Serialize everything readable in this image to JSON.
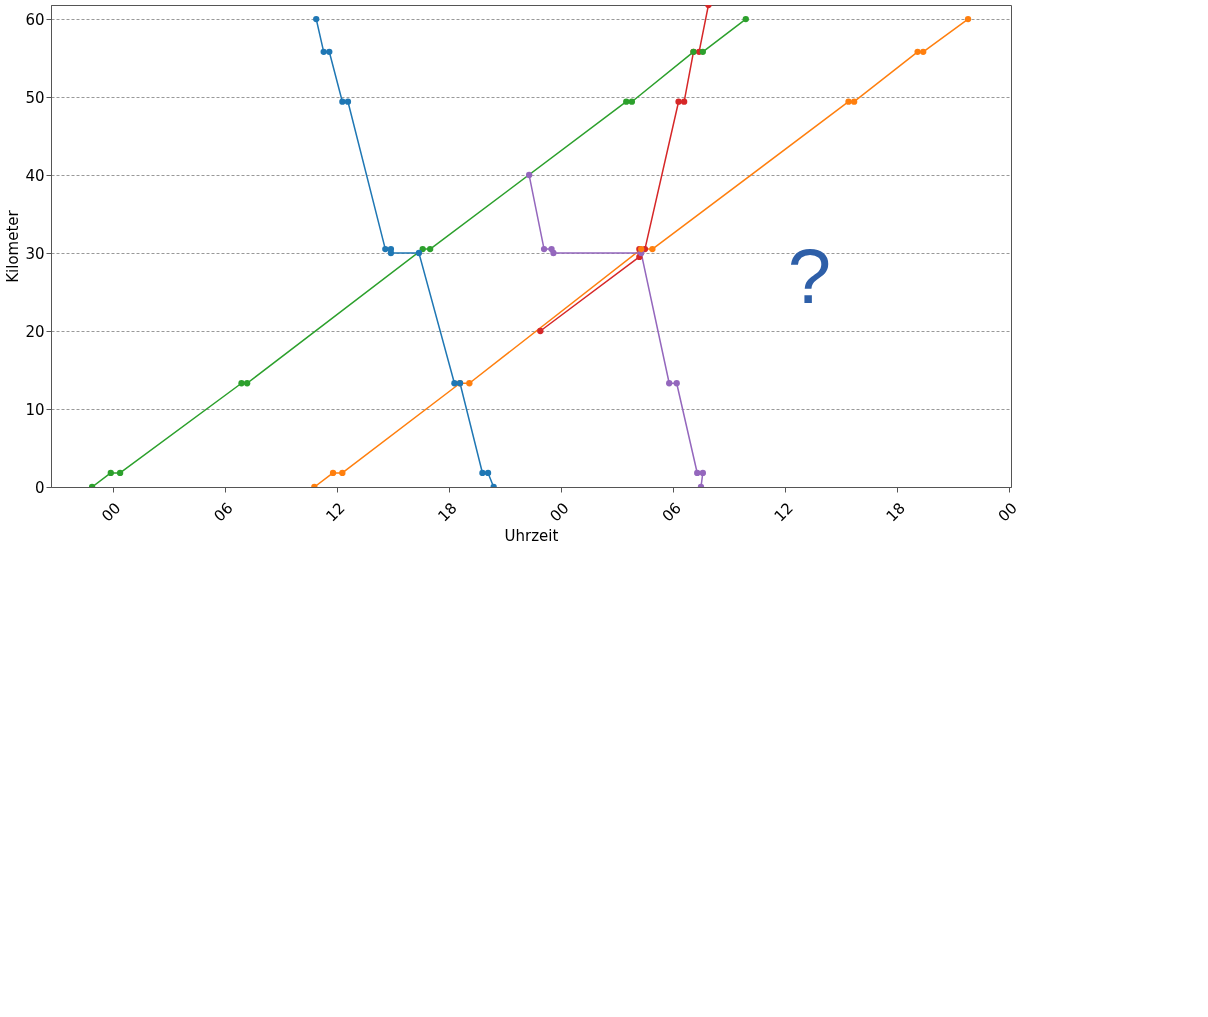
{
  "chart_data": {
    "type": "line",
    "xlabel": "Uhrzeit",
    "ylabel": "Kilometer",
    "xlim": [
      -3.3,
      48.1
    ],
    "ylim": [
      0,
      61.8
    ],
    "xticks": [
      {
        "value": 0,
        "label": "00"
      },
      {
        "value": 6,
        "label": "06"
      },
      {
        "value": 12,
        "label": "12"
      },
      {
        "value": 18,
        "label": "18"
      },
      {
        "value": 24,
        "label": "00"
      },
      {
        "value": 30,
        "label": "06"
      },
      {
        "value": 36,
        "label": "12"
      },
      {
        "value": 42,
        "label": "18"
      },
      {
        "value": 48,
        "label": "00"
      }
    ],
    "yticks": [
      0,
      10,
      20,
      30,
      40,
      50,
      60
    ],
    "grid": "y",
    "legend": false,
    "marker": "circle",
    "line_style": "solid",
    "annotations": [
      "?"
    ],
    "series": [
      {
        "color": "#1f77b4",
        "x": [
          10.9,
          11.3,
          11.6,
          12.3,
          12.6,
          14.6,
          14.9,
          14.9,
          16.4,
          18.3,
          18.6,
          19.8,
          20.1,
          20.4
        ],
        "values": [
          60,
          55.8,
          55.8,
          49.4,
          49.4,
          30.5,
          30.5,
          30,
          30,
          13.3,
          13.3,
          1.8,
          1.8,
          0
        ]
      },
      {
        "color": "#ff7f0e",
        "x": [
          10.8,
          11.8,
          12.3,
          18.6,
          19.1,
          28.3,
          28.9,
          39.4,
          39.7,
          43.1,
          43.4,
          45.8
        ],
        "values": [
          0,
          1.8,
          1.8,
          13.3,
          13.3,
          30.5,
          30.5,
          49.4,
          49.4,
          55.8,
          55.8,
          60
        ]
      },
      {
        "color": "#2ca02c",
        "x": [
          -1.1,
          -0.1,
          0.4,
          6.9,
          7.2,
          16.6,
          17.0,
          27.5,
          27.8,
          31.1,
          31.6,
          33.9
        ],
        "values": [
          0,
          1.8,
          1.8,
          13.3,
          13.3,
          30.5,
          30.5,
          49.4,
          49.4,
          55.8,
          55.8,
          60
        ]
      },
      {
        "color": "#d62728",
        "x": [
          22.9,
          28.2,
          28.2,
          28.5,
          30.3,
          30.6,
          31.1,
          31.4,
          31.9
        ],
        "values": [
          20,
          29.5,
          30.5,
          30.5,
          49.4,
          49.4,
          55.8,
          55.8,
          61.8
        ]
      },
      {
        "color": "#9467bd",
        "x": [
          22.3,
          23.1,
          23.5,
          23.6,
          28.3,
          29.8,
          30.2,
          31.3,
          31.6,
          31.5
        ],
        "values": [
          40,
          30.5,
          30.5,
          30,
          30,
          13.3,
          13.3,
          1.8,
          1.8,
          0
        ]
      }
    ]
  }
}
